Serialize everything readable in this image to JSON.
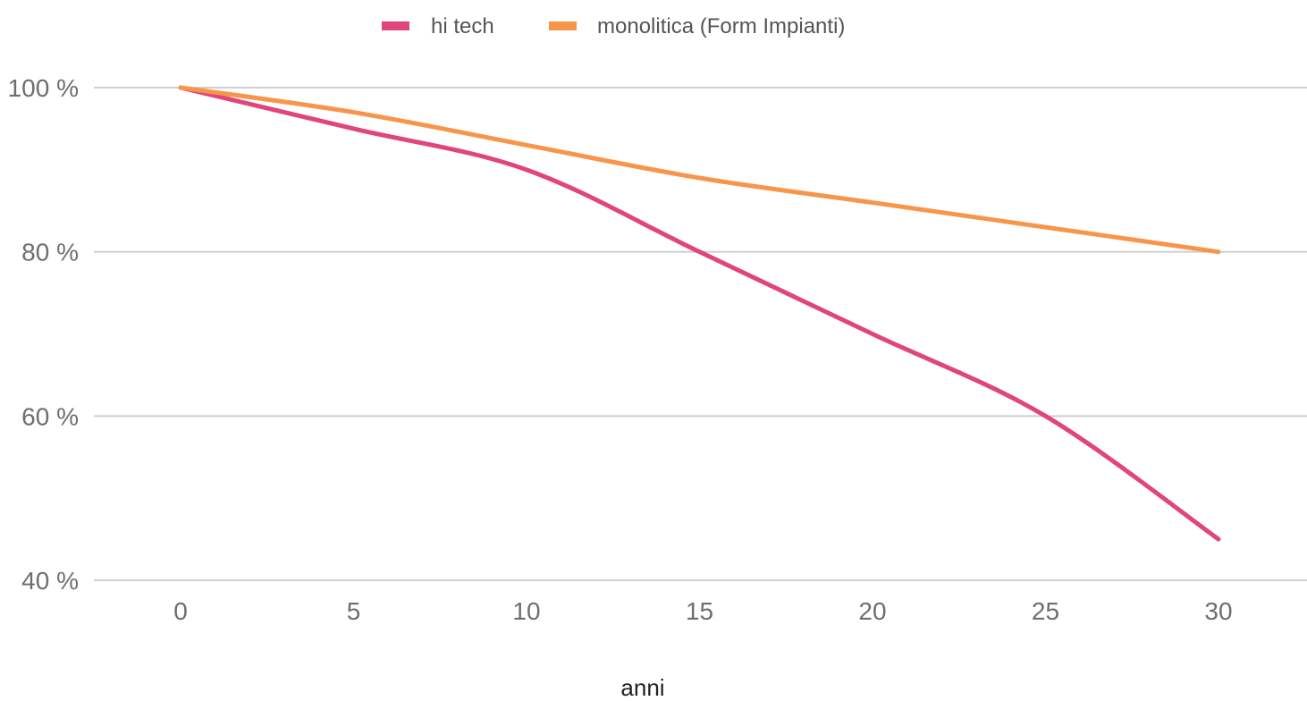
{
  "chart_data": {
    "type": "line",
    "title": "",
    "xlabel": "anni",
    "ylabel": "",
    "x": [
      0,
      5,
      10,
      15,
      20,
      25,
      30
    ],
    "xticks": [
      "0",
      "5",
      "10",
      "15",
      "20",
      "25",
      "30"
    ],
    "ylim": [
      40,
      100
    ],
    "yticks": [
      {
        "value": 100,
        "label": "100 %"
      },
      {
        "value": 80,
        "label": "80 %"
      },
      {
        "value": 60,
        "label": "60 %"
      },
      {
        "value": 40,
        "label": "40 %"
      }
    ],
    "grid": true,
    "legend_position": "top-center",
    "series": [
      {
        "name": "hi tech",
        "color": "#e0457b",
        "values": [
          100,
          95,
          90,
          80,
          70,
          60,
          45
        ]
      },
      {
        "name": "monolitica (Form Impianti)",
        "color": "#f7964a",
        "values": [
          100,
          97,
          93,
          89,
          86,
          83,
          80
        ]
      }
    ]
  }
}
